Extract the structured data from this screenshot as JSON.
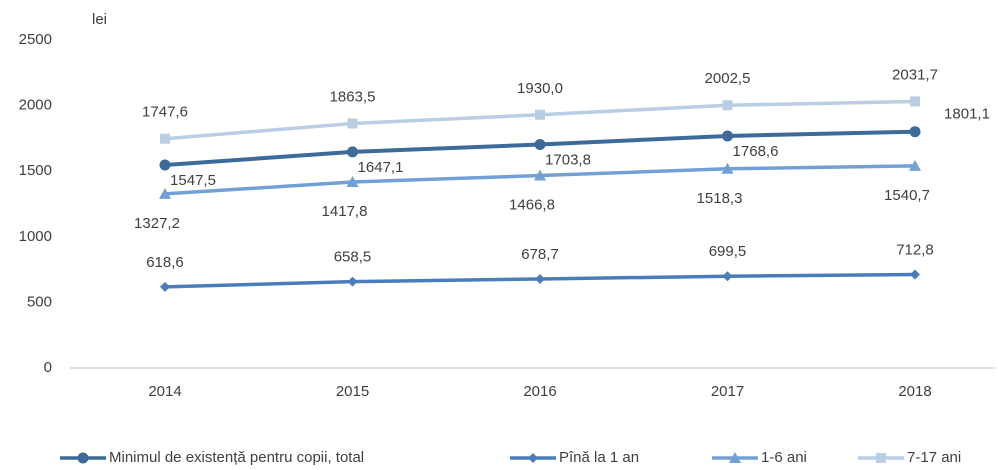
{
  "chart_data": {
    "type": "line",
    "y_axis_label": "lei",
    "categories": [
      "2014",
      "2015",
      "2016",
      "2017",
      "2018"
    ],
    "ylim": [
      0,
      2500
    ],
    "yticks": [
      0,
      500,
      1000,
      1500,
      2000,
      2500
    ],
    "grid": false,
    "legend": "bottom",
    "series": [
      {
        "name": "Minimul de existență pentru copii, total",
        "color": "#3d6b99",
        "marker": "circle",
        "values": [
          1547.5,
          1647.1,
          1703.8,
          1768.6,
          1801.1
        ],
        "value_labels": [
          "1547,5",
          "1647,1",
          "1703,8",
          "1768,6",
          "1801,1"
        ]
      },
      {
        "name": "Pînă la 1 an",
        "color": "#4a7ebb",
        "marker": "diamond",
        "values": [
          618.6,
          658.5,
          678.7,
          699.5,
          712.8
        ],
        "value_labels": [
          "618,6",
          "658,5",
          "678,7",
          "699,5",
          "712,8"
        ]
      },
      {
        "name": "1-6 ani",
        "color": "#72a0d6",
        "marker": "triangle",
        "values": [
          1327.2,
          1417.8,
          1466.8,
          1518.3,
          1540.7
        ],
        "value_labels": [
          "1327,2",
          "1417,8",
          "1466,8",
          "1518,3",
          "1540,7"
        ]
      },
      {
        "name": "7-17 ani",
        "color": "#b9cde5",
        "marker": "square",
        "values": [
          1747.6,
          1863.5,
          1930.0,
          2002.5,
          2031.7
        ],
        "value_labels": [
          "1747,6",
          "1863,5",
          "1930,0",
          "2002,5",
          "2031,7"
        ]
      }
    ]
  }
}
